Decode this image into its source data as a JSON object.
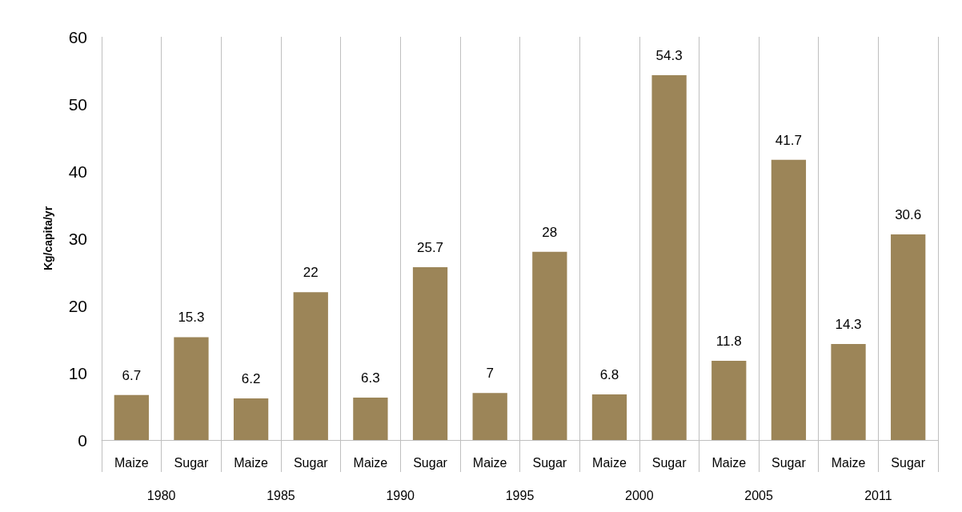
{
  "chart_data": {
    "type": "bar",
    "ylabel": "Kg/capita/yr",
    "categories": [
      "Maize",
      "Sugar",
      "Maize",
      "Sugar",
      "Maize",
      "Sugar",
      "Maize",
      "Sugar",
      "Maize",
      "Sugar",
      "Maize",
      "Sugar",
      "Maize",
      "Sugar"
    ],
    "values": [
      6.7,
      15.3,
      6.2,
      22,
      6.3,
      25.7,
      7,
      28,
      6.8,
      54.3,
      11.8,
      41.7,
      14.3,
      30.6
    ],
    "color": "#9c8558",
    "ylim": [
      0,
      60
    ],
    "yticks": [
      0,
      10,
      20,
      30,
      40,
      50,
      60
    ],
    "grid": "x",
    "data_labels": true,
    "annotations": [
      "1980",
      "1985",
      "1990",
      "1995",
      "2000",
      "2005",
      "2011"
    ]
  }
}
